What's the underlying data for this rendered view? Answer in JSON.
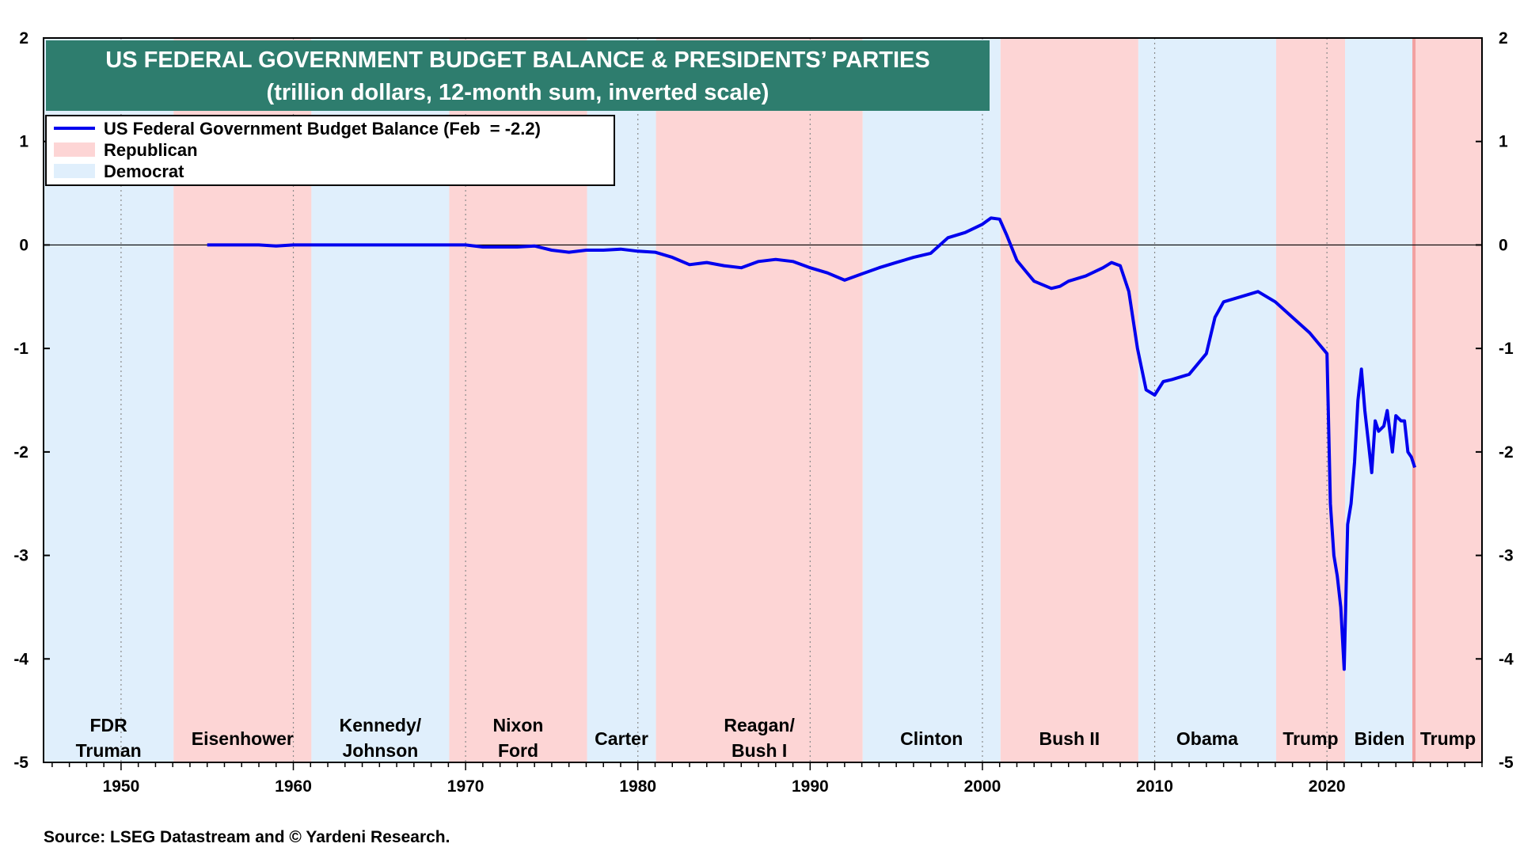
{
  "chart_data": {
    "type": "line",
    "title": "US FEDERAL GOVERNMENT BUDGET BALANCE & PRESIDENTS’ PARTIES",
    "subtitle": "(trillion dollars, 12-month sum, inverted scale)",
    "source": "Source: LSEG Datastream and © Yardeni Research.",
    "x_range": [
      1945.5,
      2029
    ],
    "y_range": [
      -5,
      2
    ],
    "y_ticks": [
      2,
      1,
      0,
      -1,
      -2,
      -3,
      -4,
      -5
    ],
    "x_ticks": [
      1950,
      1960,
      1970,
      1980,
      1990,
      2000,
      2010,
      2020
    ],
    "grid": "dotted vertical at decades, solid horizontal at 0",
    "legend": {
      "placement": "top-left",
      "entries": [
        {
          "label": "US Federal Government Budget Balance (Feb  = -2.2)",
          "color": "#0000ee"
        },
        {
          "label": "Republican",
          "color": "#fdd5d5"
        },
        {
          "label": "Democrat",
          "color": "#e0effc"
        }
      ]
    },
    "colors": {
      "republican": "#fdd5d5",
      "democrat": "#e0effc",
      "line": "#0000ee",
      "title_bg": "#2e7d6e",
      "inauguration_marker": "#f2a0a0"
    },
    "presidencies": [
      {
        "start": 1945.5,
        "end": 1953.05,
        "party": "D",
        "label": [
          "FDR",
          "Truman"
        ]
      },
      {
        "start": 1953.05,
        "end": 1961.05,
        "party": "R",
        "label": [
          "Eisenhower"
        ]
      },
      {
        "start": 1961.05,
        "end": 1969.05,
        "party": "D",
        "label": [
          "Kennedy/",
          "Johnson"
        ]
      },
      {
        "start": 1969.05,
        "end": 1977.05,
        "party": "R",
        "label": [
          "Nixon",
          "Ford"
        ]
      },
      {
        "start": 1977.05,
        "end": 1981.05,
        "party": "D",
        "label": [
          "Carter"
        ]
      },
      {
        "start": 1981.05,
        "end": 1993.05,
        "party": "R",
        "label": [
          "Reagan/",
          "Bush I"
        ]
      },
      {
        "start": 1993.05,
        "end": 2001.05,
        "party": "D",
        "label": [
          "Clinton"
        ]
      },
      {
        "start": 2001.05,
        "end": 2009.05,
        "party": "R",
        "label": [
          "Bush II"
        ]
      },
      {
        "start": 2009.05,
        "end": 2017.05,
        "party": "D",
        "label": [
          "Obama"
        ]
      },
      {
        "start": 2017.05,
        "end": 2021.05,
        "party": "R",
        "label": [
          "Trump"
        ]
      },
      {
        "start": 2021.05,
        "end": 2025.05,
        "party": "D",
        "label": [
          "Biden"
        ]
      },
      {
        "start": 2025.05,
        "end": 2029,
        "party": "R",
        "label": [
          "Trump"
        ]
      }
    ],
    "series": [
      {
        "name": "US Federal Government Budget Balance",
        "x": [
          1955.0,
          1956.0,
          1957.0,
          1958.0,
          1959.0,
          1960.0,
          1961.0,
          1962.0,
          1963.0,
          1964.0,
          1965.0,
          1966.0,
          1967.0,
          1968.0,
          1969.0,
          1970.0,
          1971.0,
          1972.0,
          1973.0,
          1974.0,
          1975.0,
          1976.0,
          1977.0,
          1978.0,
          1979.0,
          1980.0,
          1981.0,
          1982.0,
          1983.0,
          1984.0,
          1985.0,
          1986.0,
          1987.0,
          1988.0,
          1989.0,
          1990.0,
          1991.0,
          1992.0,
          1993.0,
          1994.0,
          1995.0,
          1996.0,
          1997.0,
          1998.0,
          1999.0,
          2000.0,
          2000.5,
          2001.0,
          2001.4,
          2002.0,
          2002.5,
          2003.0,
          2004.0,
          2004.5,
          2005.0,
          2006.0,
          2007.0,
          2007.5,
          2008.0,
          2008.5,
          2009.0,
          2009.5,
          2010.0,
          2010.5,
          2011.0,
          2012.0,
          2013.0,
          2013.5,
          2014.0,
          2015.0,
          2016.0,
          2017.0,
          2018.0,
          2019.0,
          2019.5,
          2020.0,
          2020.2,
          2020.4,
          2020.6,
          2020.8,
          2021.0,
          2021.2,
          2021.4,
          2021.6,
          2021.8,
          2022.0,
          2022.2,
          2022.4,
          2022.6,
          2022.8,
          2023.0,
          2023.3,
          2023.5,
          2023.8,
          2024.0,
          2024.3,
          2024.5,
          2024.7,
          2024.9,
          2025.1
        ],
        "values": [
          0.0,
          0.0,
          0.0,
          0.0,
          -0.01,
          0.0,
          0.0,
          0.0,
          0.0,
          0.0,
          0.0,
          0.0,
          0.0,
          0.0,
          0.0,
          0.0,
          -0.02,
          -0.02,
          -0.02,
          -0.01,
          -0.05,
          -0.07,
          -0.05,
          -0.05,
          -0.04,
          -0.06,
          -0.07,
          -0.12,
          -0.19,
          -0.17,
          -0.2,
          -0.22,
          -0.16,
          -0.14,
          -0.16,
          -0.22,
          -0.27,
          -0.34,
          -0.28,
          -0.22,
          -0.17,
          -0.12,
          -0.08,
          0.07,
          0.12,
          0.2,
          0.26,
          0.25,
          0.1,
          -0.15,
          -0.25,
          -0.35,
          -0.42,
          -0.4,
          -0.35,
          -0.3,
          -0.22,
          -0.17,
          -0.2,
          -0.45,
          -1.0,
          -1.4,
          -1.45,
          -1.32,
          -1.3,
          -1.25,
          -1.05,
          -0.7,
          -0.55,
          -0.5,
          -0.45,
          -0.55,
          -0.7,
          -0.85,
          -0.95,
          -1.05,
          -2.5,
          -3.0,
          -3.2,
          -3.5,
          -4.1,
          -2.7,
          -2.5,
          -2.1,
          -1.5,
          -1.2,
          -1.6,
          -1.9,
          -2.2,
          -1.7,
          -1.8,
          -1.75,
          -1.6,
          -2.0,
          -1.65,
          -1.7,
          -1.7,
          -2.0,
          -2.05,
          -2.15
        ]
      }
    ]
  }
}
